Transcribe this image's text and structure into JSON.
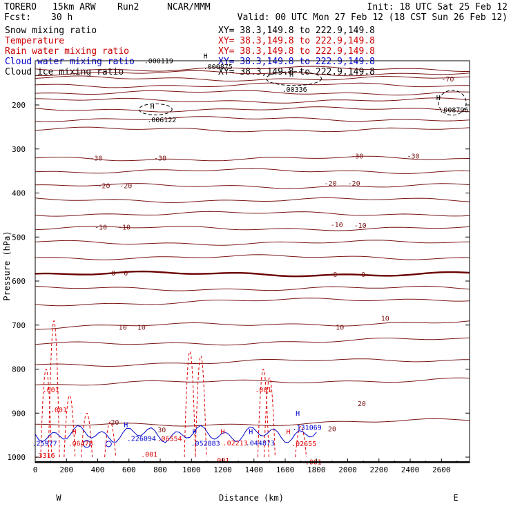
{
  "header": {
    "model_name": "TORERO",
    "model_config": "15km ARW",
    "run_label": "Run2",
    "producer": "NCAR/MMM",
    "init_text": "Init: 18 UTC Sat 25 Feb 12",
    "fcst_label": "Fcst:",
    "fcst_value": "30 h",
    "valid_text": "Valid: 00 UTC Mon 27 Feb 12 (18 CST Sun 26 Feb 12)"
  },
  "fields": [
    {
      "name": "Snow mixing ratio",
      "xy": "XY=  38.3,149.8 to 222.9,149.8",
      "color": "#000000"
    },
    {
      "name": "Temperature",
      "xy": "XY=  38.3,149.8 to 222.9,149.8",
      "color": "#cc0000"
    },
    {
      "name": "Rain water mixing ratio",
      "xy": "XY=  38.3,149.8 to 222.9,149.8",
      "color": "#cc0000"
    },
    {
      "name": "Cloud water mixing ratio",
      "xy": "XY=  38.3,149.8 to 222.9,149.8",
      "color": "#0000cc"
    },
    {
      "name": "Cloud ice mixing ratio",
      "xy": "XY=  38.3,149.8 to 222.9,149.8",
      "color": "#000000"
    }
  ],
  "colors": {
    "temperature": "#7a1414",
    "freezing_line": "#6a0000",
    "rain": "#e00000",
    "cloud_water": "#0000cc",
    "snow": "#000000",
    "frame": "#000000"
  },
  "chart_data": {
    "type": "contour-cross-section",
    "xlabel": "Distance (km)",
    "ylabel": "Pressure (hPa)",
    "xlim": [
      0,
      2780
    ],
    "ylim": [
      1010,
      100
    ],
    "x_ticks": [
      0,
      200,
      400,
      600,
      800,
      1000,
      1200,
      1400,
      1600,
      1800,
      2000,
      2200,
      2400,
      2600
    ],
    "y_ticks": [
      200,
      300,
      400,
      500,
      600,
      700,
      800,
      900,
      1000
    ],
    "x_end_labels": {
      "left": "W",
      "right": "E"
    },
    "temperature_isotherms": [
      {
        "label": "-70",
        "pressure": 118
      },
      {
        "label": "",
        "pressure": 128
      },
      {
        "label": "",
        "pressure": 140
      },
      {
        "label": "",
        "pressure": 155
      },
      {
        "label": "",
        "pressure": 172
      },
      {
        "label": "",
        "pressure": 190
      },
      {
        "label": "",
        "pressure": 210
      },
      {
        "label": "",
        "pressure": 232
      },
      {
        "label": "",
        "pressure": 256
      },
      {
        "label": "-30",
        "pressure": 322
      },
      {
        "label": "",
        "pressure": 350
      },
      {
        "label": "-20",
        "pressure": 384
      },
      {
        "label": "",
        "pressure": 416
      },
      {
        "label": "",
        "pressure": 447
      },
      {
        "label": "-10",
        "pressure": 480
      },
      {
        "label": "",
        "pressure": 513
      },
      {
        "label": "",
        "pressure": 546
      },
      {
        "label": "0",
        "pressure": 584
      },
      {
        "label": "",
        "pressure": 617
      },
      {
        "label": "",
        "pressure": 652
      },
      {
        "label": "10",
        "pressure": 705
      },
      {
        "label": "",
        "pressure": 745
      },
      {
        "label": "",
        "pressure": 790
      },
      {
        "label": "",
        "pressure": 835
      },
      {
        "label": "20",
        "pressure": 930
      }
    ],
    "contour_labels": [
      {
        "text": "-70",
        "x": 2640,
        "p": 140
      },
      {
        "text": "-30",
        "x": 390,
        "p": 320
      },
      {
        "text": "-30",
        "x": 800,
        "p": 320
      },
      {
        "text": "-30",
        "x": 2060,
        "p": 315
      },
      {
        "text": "-30",
        "x": 2420,
        "p": 315
      },
      {
        "text": "-20",
        "x": 440,
        "p": 383
      },
      {
        "text": "-20",
        "x": 580,
        "p": 383
      },
      {
        "text": "-20",
        "x": 1890,
        "p": 377
      },
      {
        "text": "-20",
        "x": 2040,
        "p": 377
      },
      {
        "text": "-10",
        "x": 420,
        "p": 477
      },
      {
        "text": "-10",
        "x": 570,
        "p": 477
      },
      {
        "text": "-10",
        "x": 1930,
        "p": 471
      },
      {
        "text": "-10",
        "x": 2080,
        "p": 473
      },
      {
        "text": "0",
        "x": 500,
        "p": 581
      },
      {
        "text": "0",
        "x": 580,
        "p": 581
      },
      {
        "text": "0",
        "x": 1920,
        "p": 584
      },
      {
        "text": "0",
        "x": 2100,
        "p": 584
      },
      {
        "text": "10",
        "x": 560,
        "p": 704
      },
      {
        "text": "10",
        "x": 680,
        "p": 704
      },
      {
        "text": "10",
        "x": 1950,
        "p": 704
      },
      {
        "text": "10",
        "x": 2240,
        "p": 684
      },
      {
        "text": "20",
        "x": 2090,
        "p": 878
      },
      {
        "text": "20",
        "x": 1900,
        "p": 935
      },
      {
        "text": "20",
        "x": 510,
        "p": 920
      },
      {
        "text": "30",
        "x": 810,
        "p": 937
      }
    ],
    "rain_labels": [
      {
        "text": ".001",
        "x": 100,
        "p": 846
      },
      {
        "text": ".001",
        "x": 150,
        "p": 892
      },
      {
        "text": ".001",
        "x": 1460,
        "p": 846
      },
      {
        "text": ".001",
        "x": 730,
        "p": 993
      },
      {
        "text": ".001",
        "x": 1190,
        "p": 1006
      },
      {
        "text": ".001",
        "x": 1780,
        "p": 1010
      },
      {
        "text": ".3316",
        "x": 60,
        "p": 995
      },
      {
        "text": ".06478",
        "x": 290,
        "p": 968
      },
      {
        "text": ".06554",
        "x": 860,
        "p": 957
      },
      {
        "text": ".02213",
        "x": 1280,
        "p": 967
      },
      {
        "text": ".02655",
        "x": 1720,
        "p": 969
      }
    ],
    "cloud_water_labels": [
      {
        "text": ".25977",
        "x": 60,
        "p": 968
      },
      {
        "text": ".226094",
        "x": 680,
        "p": 957
      },
      {
        "text": ".052883",
        "x": 1090,
        "p": 968
      },
      {
        "text": ".044873",
        "x": 1440,
        "p": 967
      },
      {
        "text": ".131069",
        "x": 1740,
        "p": 932
      }
    ],
    "snow_labels": [
      {
        "text": ".000119",
        "x": 790,
        "p": 99
      },
      {
        "text": ".000875",
        "x": 1170,
        "p": 112
      },
      {
        "text": ".00336",
        "x": 1660,
        "p": 164
      },
      {
        "text": ".006122",
        "x": 810,
        "p": 233
      },
      {
        "text": ".008796",
        "x": 2680,
        "p": 210
      }
    ],
    "maxima_markers": [
      {
        "text": "H",
        "x": 1090,
        "p": 100,
        "field": "snow"
      },
      {
        "text": "H",
        "x": 1640,
        "p": 142,
        "field": "snow"
      },
      {
        "text": "H",
        "x": 750,
        "p": 215,
        "field": "snow"
      },
      {
        "text": "H",
        "x": 2580,
        "p": 195,
        "field": "snow"
      },
      {
        "text": "H",
        "x": 580,
        "p": 938,
        "field": "cloud"
      },
      {
        "text": "H",
        "x": 1020,
        "p": 954,
        "field": "cloud"
      },
      {
        "text": "H",
        "x": 1380,
        "p": 954,
        "field": "cloud"
      },
      {
        "text": "H",
        "x": 1680,
        "p": 912,
        "field": "cloud"
      },
      {
        "text": "H",
        "x": 250,
        "p": 954,
        "field": "rain"
      },
      {
        "text": "H",
        "x": 1200,
        "p": 954,
        "field": "rain"
      },
      {
        "text": "H",
        "x": 1620,
        "p": 954,
        "field": "rain"
      }
    ]
  }
}
